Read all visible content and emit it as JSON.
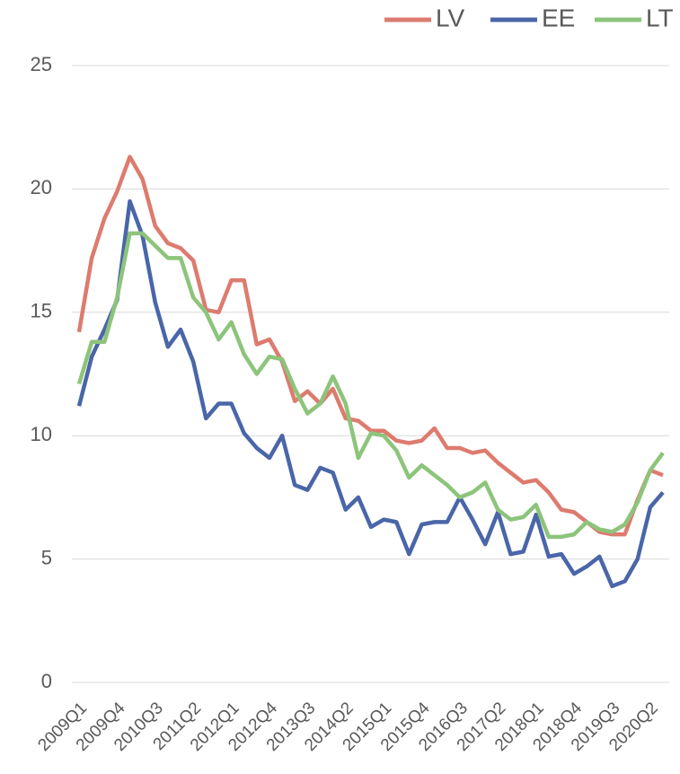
{
  "chart_data": {
    "type": "line",
    "categories": [
      "2009Q1",
      null,
      null,
      "2009Q4",
      null,
      null,
      "2010Q3",
      null,
      null,
      "2011Q2",
      null,
      null,
      "2012Q1",
      null,
      null,
      "2012Q4",
      null,
      null,
      "2013Q3",
      null,
      null,
      "2014Q2",
      null,
      null,
      "2015Q1",
      null,
      null,
      "2015Q4",
      null,
      null,
      "2016Q3",
      null,
      null,
      "2017Q2",
      null,
      null,
      "2018Q1",
      null,
      null,
      "2018Q4",
      null,
      null,
      "2019Q3",
      null,
      null,
      "2020Q2",
      null
    ],
    "series": [
      {
        "name": "LV",
        "color": "#dd7b6f",
        "values": [
          14.2,
          17.2,
          18.8,
          19.9,
          21.3,
          20.4,
          18.5,
          17.8,
          17.6,
          17.1,
          15.1,
          15.0,
          16.3,
          16.3,
          13.7,
          13.9,
          13.0,
          11.4,
          11.8,
          11.3,
          11.9,
          10.7,
          10.6,
          10.2,
          10.2,
          9.8,
          9.7,
          9.8,
          10.3,
          9.5,
          9.5,
          9.3,
          9.4,
          8.9,
          8.5,
          8.1,
          8.2,
          7.7,
          7.0,
          6.9,
          6.5,
          6.1,
          6.0,
          6.0,
          7.4,
          8.6,
          8.4
        ]
      },
      {
        "name": "EE",
        "color": "#4a66a9",
        "values": [
          11.2,
          13.2,
          14.3,
          15.5,
          19.5,
          18.1,
          15.4,
          13.6,
          14.3,
          13.0,
          10.7,
          11.3,
          11.3,
          10.1,
          9.5,
          9.1,
          10.0,
          8.0,
          7.8,
          8.7,
          8.5,
          7.0,
          7.5,
          6.3,
          6.6,
          6.5,
          5.2,
          6.4,
          6.5,
          6.5,
          7.5,
          6.6,
          5.6,
          6.9,
          5.2,
          5.3,
          6.8,
          5.1,
          5.2,
          4.4,
          4.7,
          5.1,
          3.9,
          4.1,
          5.0,
          7.1,
          7.7
        ]
      },
      {
        "name": "LT",
        "color": "#8dc47b",
        "values": [
          12.1,
          13.8,
          13.8,
          15.6,
          18.2,
          18.2,
          17.7,
          17.2,
          17.2,
          15.6,
          15.0,
          13.9,
          14.6,
          13.3,
          12.5,
          13.2,
          13.1,
          11.9,
          10.9,
          11.3,
          12.4,
          11.3,
          9.1,
          10.1,
          10.0,
          9.4,
          8.3,
          8.8,
          8.4,
          8.0,
          7.5,
          7.7,
          8.1,
          7.0,
          6.6,
          6.7,
          7.2,
          5.9,
          5.9,
          6.0,
          6.5,
          6.2,
          6.1,
          6.4,
          7.3,
          8.6,
          9.3
        ]
      }
    ],
    "ylim": [
      0,
      25
    ],
    "yticks": [
      0,
      5,
      10,
      15,
      20,
      25
    ],
    "grid": true,
    "legend": "top-right"
  }
}
